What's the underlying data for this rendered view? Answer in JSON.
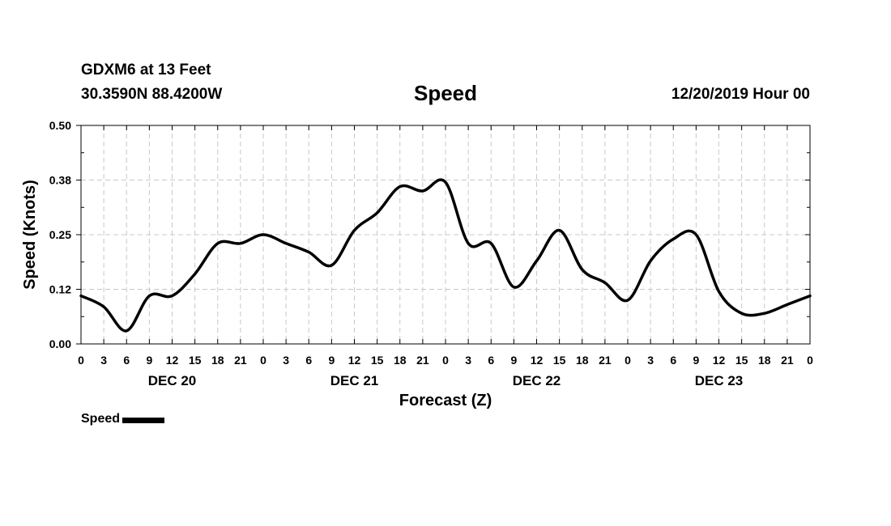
{
  "header": {
    "station": "GDXM6 at 13 Feet",
    "coordinates": "30.3590N 88.4200W",
    "run_time": "12/20/2019 Hour 00"
  },
  "chart_data": {
    "type": "line",
    "title": "Speed",
    "xlabel": "Forecast (Z)",
    "ylabel": "Speed (Knots)",
    "xlim": [
      0,
      96
    ],
    "ylim": [
      0,
      0.5
    ],
    "y_ticks": [
      "0.00",
      "0.12",
      "0.25",
      "0.38",
      "0.50"
    ],
    "x_tick_labels": [
      "0",
      "3",
      "6",
      "9",
      "12",
      "15",
      "18",
      "21",
      "0",
      "3",
      "6",
      "9",
      "12",
      "15",
      "18",
      "21",
      "0",
      "3",
      "6",
      "9",
      "12",
      "15",
      "18",
      "21",
      "0",
      "3",
      "6",
      "9",
      "12",
      "15",
      "18",
      "21",
      "0"
    ],
    "day_labels": [
      "DEC 20",
      "DEC 21",
      "DEC 22",
      "DEC 23"
    ],
    "grid": true,
    "legend_position": "bottom-left",
    "series": [
      {
        "name": "Speed",
        "color": "#000000",
        "x": [
          0,
          3,
          6,
          9,
          12,
          15,
          18,
          21,
          24,
          27,
          30,
          33,
          36,
          39,
          42,
          45,
          48,
          51,
          54,
          57,
          60,
          63,
          66,
          69,
          72,
          75,
          78,
          81,
          84,
          87,
          90,
          93,
          96
        ],
        "values": [
          0.11,
          0.085,
          0.03,
          0.11,
          0.11,
          0.16,
          0.23,
          0.23,
          0.25,
          0.23,
          0.21,
          0.18,
          0.26,
          0.3,
          0.36,
          0.35,
          0.37,
          0.23,
          0.23,
          0.13,
          0.19,
          0.26,
          0.17,
          0.14,
          0.1,
          0.19,
          0.24,
          0.25,
          0.12,
          0.07,
          0.07,
          0.09,
          0.11
        ]
      }
    ]
  }
}
